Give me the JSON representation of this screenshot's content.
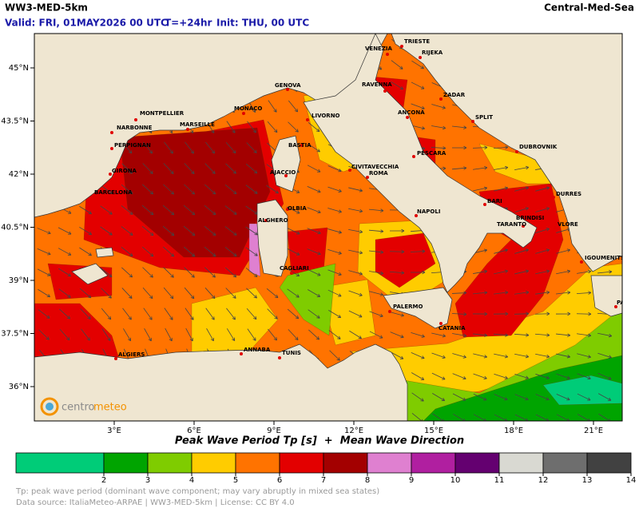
{
  "header": {
    "title": "WW3-MED-5km",
    "region": "Central-Med-Sea",
    "valid": "Valid: FRI, 01MAY2026 00 UTC",
    "step": "T=+24hr",
    "init": "Init: THU, 00 UTC"
  },
  "map": {
    "lon_ticks": [
      {
        "value": 3,
        "label": "3°E"
      },
      {
        "value": 6,
        "label": "6°E"
      },
      {
        "value": 9,
        "label": "9°E"
      },
      {
        "value": 12,
        "label": "12°E"
      },
      {
        "value": 15,
        "label": "15°E"
      },
      {
        "value": 18,
        "label": "18°E"
      },
      {
        "value": 21,
        "label": "21°E"
      }
    ],
    "lat_ticks": [
      {
        "value": 45,
        "label": "45°N"
      },
      {
        "value": 43.5,
        "label": "43.5°N"
      },
      {
        "value": 42,
        "label": "42°N"
      },
      {
        "value": 40.5,
        "label": "40.5°N"
      },
      {
        "value": 39,
        "label": "39°N"
      },
      {
        "value": 37.5,
        "label": "37.5°N"
      },
      {
        "value": 36,
        "label": "36°N"
      }
    ],
    "cities": [
      "TRIESTE",
      "RIJEKA",
      "VENEZIA",
      "GENOVA",
      "ZADAR",
      "RAVENNA",
      "MONTPELLIER",
      "MONACO",
      "LIVORNO",
      "ANCONA",
      "SPLIT",
      "NARBONNE",
      "MARSEILLE",
      "PERPIGNAN",
      "BASTIA",
      "DUBROVNIK",
      "PESCARA",
      "GIRONA",
      "CIVITAVECCHIA",
      "AJACCIO",
      "ROMA",
      "DURRES",
      "BARCELONA",
      "BARI",
      "OLBIA",
      "NAPOLI",
      "BRINDISI",
      "TARANTO",
      "ALGHERO",
      "VLORE",
      "IGOUMENITSA",
      "CAGLIARI",
      "PALERMO",
      "PATRAS",
      "CATANIA",
      "ANNABA",
      "TUNIS",
      "ALGIERS"
    ],
    "logo": [
      "centro",
      "meteo"
    ]
  },
  "caption": "Peak Wave Period Tp [s]  +  Mean Wave Direction",
  "colorbar": {
    "ticks": [
      2,
      3,
      4,
      5,
      6,
      7,
      8,
      9,
      10,
      11,
      12,
      13,
      14
    ],
    "colors": [
      "#00cc78",
      "#00a400",
      "#7fcc00",
      "#ffcc00",
      "#ff7300",
      "#e30000",
      "#a30000",
      "#df80d0",
      "#b01fa0",
      "#640070",
      "#d9d9d2",
      "#6e6e6e",
      "#414141"
    ]
  },
  "footer": {
    "note": "Tp: peak wave period (dominant wave component; may vary abruptly in mixed sea states)",
    "source": "Data source: ItaliaMeteo-ARPAE | WW3-MED-5km | License: CC BY 4.0"
  }
}
